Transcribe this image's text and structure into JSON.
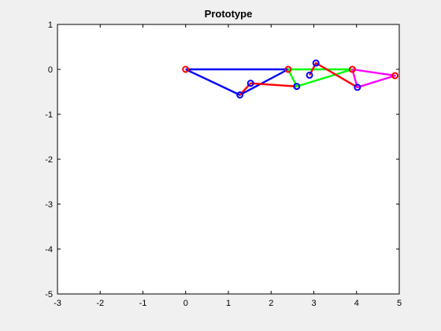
{
  "chart_data": {
    "type": "line",
    "title": "Prototype",
    "xlabel": "",
    "ylabel": "",
    "xlim": [
      -3,
      5
    ],
    "ylim": [
      -5,
      1
    ],
    "xticks": [
      -3,
      -2,
      -1,
      0,
      1,
      2,
      3,
      4,
      5
    ],
    "yticks": [
      1,
      0,
      -1,
      -2,
      -3,
      -4,
      -5
    ],
    "xtick_labels": [
      "-3",
      "-2",
      "-1",
      "0",
      "1",
      "2",
      "3",
      "4",
      "5"
    ],
    "ytick_labels": [
      "1",
      "0",
      "-1",
      "-2",
      "-3",
      "-4",
      "-5"
    ],
    "grid": false,
    "series": [
      {
        "color": "#0000ff",
        "x": [
          0,
          1.27,
          2.4,
          0
        ],
        "y": [
          0,
          -0.57,
          0,
          0
        ]
      },
      {
        "color": "#ff0000",
        "x": [
          1.27,
          1.52,
          2.6
        ],
        "y": [
          -0.57,
          -0.31,
          -0.38
        ]
      },
      {
        "color": "#00ff00",
        "x": [
          2.4,
          3.9,
          2.6,
          2.4
        ],
        "y": [
          0,
          0,
          -0.38,
          0
        ]
      },
      {
        "color": "#ff0000",
        "x": [
          2.9,
          3.05,
          4.02
        ],
        "y": [
          -0.13,
          0.14,
          -0.4
        ]
      },
      {
        "color": "#ff00ff",
        "x": [
          3.9,
          4.02,
          4.9,
          3.9
        ],
        "y": [
          0,
          -0.4,
          -0.14,
          0
        ]
      }
    ],
    "markers": [
      {
        "x": 0,
        "y": 0,
        "color": "#ff0000"
      },
      {
        "x": 2.4,
        "y": 0,
        "color": "#ff0000"
      },
      {
        "x": 3.9,
        "y": 0,
        "color": "#ff0000"
      },
      {
        "x": 4.9,
        "y": -0.14,
        "color": "#ff0000"
      },
      {
        "x": 1.27,
        "y": -0.57,
        "color": "#0000ff"
      },
      {
        "x": 1.52,
        "y": -0.31,
        "color": "#0000ff"
      },
      {
        "x": 2.6,
        "y": -0.38,
        "color": "#0000ff"
      },
      {
        "x": 2.9,
        "y": -0.13,
        "color": "#0000ff"
      },
      {
        "x": 3.05,
        "y": 0.14,
        "color": "#0000ff"
      },
      {
        "x": 4.02,
        "y": -0.4,
        "color": "#0000ff"
      }
    ]
  },
  "colors": {
    "figure_background": "#f0f0f0",
    "axes_background": "#ffffff",
    "axes_edge": "#000000"
  }
}
